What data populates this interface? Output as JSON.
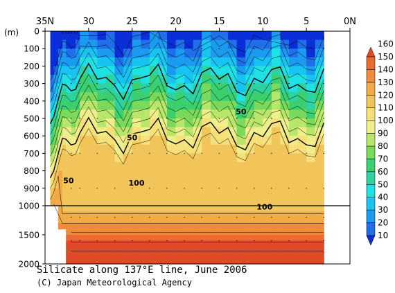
{
  "chart_data": {
    "type": "heatmap",
    "title": "Silicate along 137°E line, June 2006",
    "credit": "(C) Japan Meteorological Agency",
    "y_unit": "(m)",
    "x_ticks": [
      "35N",
      "30",
      "25",
      "20",
      "15",
      "10",
      "5",
      "0N"
    ],
    "x_tick_values": [
      35,
      30,
      25,
      20,
      15,
      10,
      5,
      0
    ],
    "y_ticks": [
      "0",
      "100",
      "200",
      "300",
      "400",
      "500",
      "600",
      "700",
      "800",
      "900",
      "1000",
      "1500",
      "2000"
    ],
    "y_tick_values": [
      0,
      100,
      200,
      300,
      400,
      500,
      600,
      700,
      800,
      900,
      1000,
      1500,
      2000
    ],
    "xlim": [
      35,
      0
    ],
    "ylim": [
      0,
      2000
    ],
    "colorbar": {
      "levels": [
        "10",
        "20",
        "30",
        "40",
        "50",
        "60",
        "70",
        "80",
        "90",
        "100",
        "110",
        "120",
        "130",
        "140",
        "150",
        "160"
      ],
      "colors": [
        "#0a2fd8",
        "#1f6fe8",
        "#1a9bf0",
        "#18c3f2",
        "#1ee1e6",
        "#2ed2a0",
        "#3ccf6e",
        "#7ad85a",
        "#b8e66a",
        "#eeee8a",
        "#f6e07a",
        "#f2c55a",
        "#f0aa46",
        "#ee8c3c",
        "#ec6a32",
        "#e04a26"
      ]
    },
    "contour_labels": [
      {
        "value": "50",
        "lat": 12.5,
        "depth": 460
      },
      {
        "value": "50",
        "lat": 25.0,
        "depth": 610
      },
      {
        "value": "50",
        "lat": 32.3,
        "depth": 855
      },
      {
        "value": "100",
        "lat": 24.5,
        "depth": 870
      },
      {
        "value": "100",
        "lat": 9.8,
        "depth": 1020
      }
    ]
  }
}
